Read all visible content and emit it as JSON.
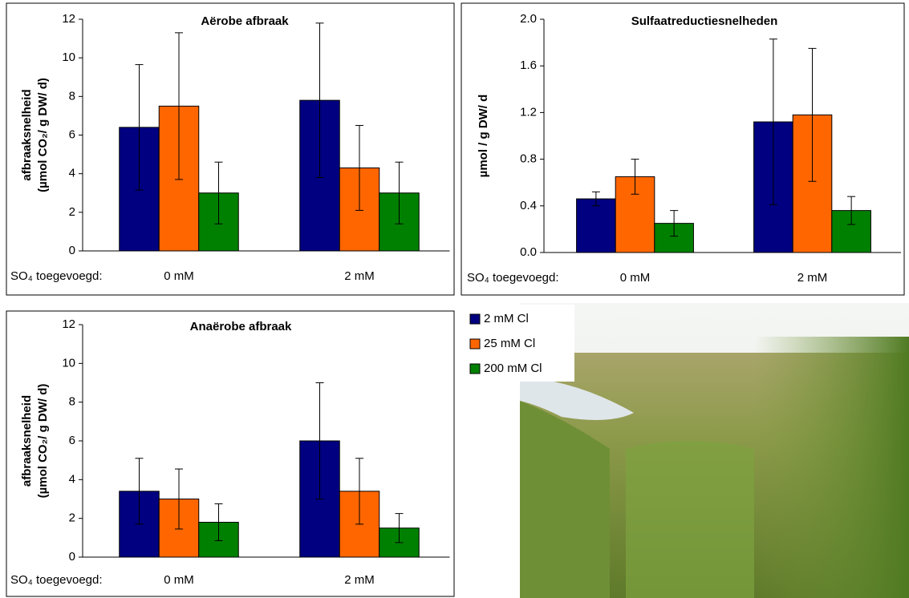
{
  "chart_data": [
    {
      "type": "bar",
      "title": "Aërobe afbraak",
      "y_label": [
        "afbraaksnelheid",
        "(µmol CO₂/ g DW/ d)"
      ],
      "x_prefix": "SO₄ toegevoegd:",
      "categories": [
        "0 mM",
        "2 mM"
      ],
      "series": [
        {
          "values": [
            6.4,
            7.8
          ],
          "errors": [
            3.25,
            4.0
          ]
        },
        {
          "values": [
            7.5,
            4.3
          ],
          "errors": [
            3.8,
            2.2
          ]
        },
        {
          "values": [
            3.0,
            3.0
          ],
          "errors": [
            1.6,
            1.6
          ]
        }
      ],
      "ylim": [
        0,
        12
      ],
      "yticks": [
        0,
        2,
        4,
        6,
        8,
        10,
        12
      ]
    },
    {
      "type": "bar",
      "title": "Sulfaatreductiesnelheden",
      "y_label": [
        "µmol / g DW/ d"
      ],
      "x_prefix": "SO₄ toegevoegd:",
      "categories": [
        "0 mM",
        "2 mM"
      ],
      "series": [
        {
          "values": [
            0.46,
            1.12
          ],
          "errors": [
            0.06,
            0.71
          ]
        },
        {
          "values": [
            0.65,
            1.18
          ],
          "errors": [
            0.15,
            0.57
          ]
        },
        {
          "values": [
            0.25,
            0.36
          ],
          "errors": [
            0.11,
            0.12
          ]
        }
      ],
      "ylim": [
        0,
        2
      ],
      "yticks": [
        {
          "value": 0,
          "label": "0.0"
        },
        {
          "value": 0.4,
          "label": "0.4"
        },
        {
          "value": 0.8,
          "label": "0.8"
        },
        {
          "value": 1.2,
          "label": "1.2"
        },
        {
          "value": 1.6,
          "label": "1.6"
        },
        {
          "value": 2,
          "label": "2.0"
        }
      ]
    },
    {
      "type": "bar",
      "title": "Anaërobe afbraak",
      "y_label": [
        "afbraaksnelheid",
        "(µmol CO₂/ g DW/ d)"
      ],
      "x_prefix": "SO₄ toegevoegd:",
      "categories": [
        "0 mM",
        "2 mM"
      ],
      "series": [
        {
          "values": [
            3.4,
            6.0
          ],
          "errors": [
            1.7,
            3.0
          ]
        },
        {
          "values": [
            3.0,
            3.4
          ],
          "errors": [
            1.55,
            1.7
          ]
        },
        {
          "values": [
            1.8,
            1.5
          ],
          "errors": [
            0.95,
            0.75
          ]
        }
      ],
      "ylim": [
        0,
        12
      ],
      "yticks": [
        0,
        2,
        4,
        6,
        8,
        10,
        12
      ]
    }
  ],
  "legend": {
    "series": [
      {
        "name": "2 mM Cl",
        "color": "#000080"
      },
      {
        "name": "25 mM Cl",
        "color": "#ff6600"
      },
      {
        "name": "200 mM Cl",
        "color": "#008000"
      }
    ]
  }
}
